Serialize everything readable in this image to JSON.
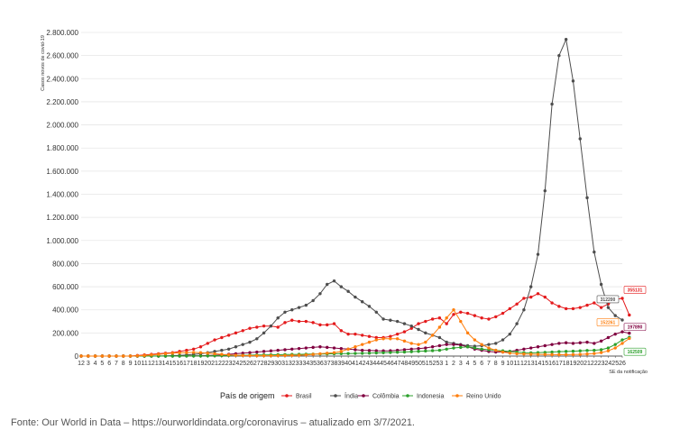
{
  "chart_data": {
    "type": "line",
    "ylabel": "Casos novos de covid-19",
    "xlabel": "SE da notificação",
    "y_ticks": [
      "0",
      "200.000",
      "400.000",
      "600.000",
      "800.000",
      "1.000.000",
      "1.200.000",
      "1.400.000",
      "1.600.000",
      "1.800.000",
      "2.000.000",
      "2.200.000",
      "2.400.000",
      "2.600.000",
      "2.800.000"
    ],
    "ylim": [
      0,
      2800000
    ],
    "x_labels": [
      "12",
      "3",
      "4",
      "5",
      "6",
      "7",
      "8",
      "9",
      "10",
      "11",
      "12",
      "13",
      "14",
      "15",
      "16",
      "17",
      "18",
      "19",
      "20",
      "21",
      "22",
      "23",
      "24",
      "25",
      "26",
      "27",
      "28",
      "29",
      "30",
      "31",
      "32",
      "33",
      "34",
      "35",
      "36",
      "37",
      "38",
      "39",
      "40",
      "41",
      "42",
      "43",
      "44",
      "45",
      "46",
      "47",
      "48",
      "49",
      "50",
      "51",
      "52",
      "53",
      "1",
      "2",
      "3",
      "4",
      "5",
      "6",
      "7",
      "8",
      "9",
      "10",
      "11",
      "12",
      "13",
      "14",
      "15",
      "16",
      "17",
      "18",
      "19",
      "20",
      "21",
      "22",
      "23",
      "24",
      "25",
      "26"
    ],
    "legend_title": "País de origem",
    "grid": true,
    "legend_position": "bottom",
    "series": [
      {
        "name": "Brasil",
        "color": "#e41a1c",
        "end_label": "355131",
        "values": [
          0,
          0,
          0,
          0,
          0,
          0,
          0,
          0,
          5000,
          10000,
          15000,
          20000,
          25000,
          30000,
          40000,
          50000,
          60000,
          80000,
          110000,
          140000,
          160000,
          180000,
          200000,
          220000,
          240000,
          250000,
          260000,
          260000,
          250000,
          290000,
          310000,
          300000,
          300000,
          290000,
          270000,
          270000,
          280000,
          220000,
          190000,
          190000,
          180000,
          170000,
          160000,
          160000,
          170000,
          190000,
          210000,
          240000,
          280000,
          300000,
          320000,
          330000,
          280000,
          360000,
          380000,
          370000,
          350000,
          330000,
          320000,
          340000,
          370000,
          410000,
          450000,
          500000,
          510000,
          540000,
          510000,
          460000,
          430000,
          410000,
          410000,
          420000,
          440000,
          460000,
          420000,
          450000,
          490000,
          500000,
          355131
        ]
      },
      {
        "name": "Índia",
        "color": "#4d4d4d",
        "end_label": "312200",
        "values": [
          0,
          0,
          0,
          0,
          0,
          0,
          0,
          0,
          0,
          0,
          500,
          1000,
          2000,
          4000,
          6000,
          10000,
          15000,
          20000,
          30000,
          40000,
          50000,
          60000,
          80000,
          100000,
          120000,
          150000,
          200000,
          260000,
          330000,
          380000,
          400000,
          420000,
          440000,
          480000,
          540000,
          620000,
          650000,
          600000,
          560000,
          510000,
          470000,
          430000,
          380000,
          320000,
          310000,
          300000,
          280000,
          260000,
          230000,
          200000,
          180000,
          160000,
          120000,
          110000,
          100000,
          90000,
          85000,
          90000,
          100000,
          110000,
          140000,
          190000,
          280000,
          400000,
          600000,
          880000,
          1430000,
          2180000,
          2600000,
          2740000,
          2380000,
          1880000,
          1370000,
          900000,
          620000,
          420000,
          350000,
          312200
        ]
      },
      {
        "name": "Colômbia",
        "color": "#800040",
        "end_label": "197890",
        "values": [
          0,
          0,
          0,
          0,
          0,
          0,
          0,
          0,
          0,
          0,
          0,
          0,
          0,
          500,
          1000,
          1500,
          2000,
          3000,
          5000,
          7000,
          10000,
          15000,
          20000,
          25000,
          30000,
          35000,
          40000,
          45000,
          50000,
          55000,
          60000,
          65000,
          70000,
          75000,
          80000,
          75000,
          70000,
          65000,
          60000,
          55000,
          50000,
          48000,
          46000,
          45000,
          46000,
          50000,
          55000,
          60000,
          65000,
          70000,
          80000,
          90000,
          100000,
          100000,
          95000,
          80000,
          60000,
          50000,
          40000,
          35000,
          35000,
          40000,
          50000,
          60000,
          70000,
          80000,
          90000,
          100000,
          110000,
          115000,
          110000,
          115000,
          120000,
          110000,
          130000,
          160000,
          190000,
          210000,
          197890
        ]
      },
      {
        "name": "Indonesia",
        "color": "#2ca02c",
        "end_label": "162509",
        "values": [
          0,
          0,
          0,
          0,
          0,
          0,
          0,
          0,
          0,
          0,
          0,
          0,
          0,
          0,
          200,
          500,
          800,
          1000,
          2000,
          3000,
          4000,
          5000,
          6000,
          7000,
          8000,
          9000,
          10000,
          11000,
          12000,
          13000,
          14000,
          15000,
          16000,
          17000,
          18000,
          19000,
          20000,
          21000,
          22000,
          23000,
          24000,
          25000,
          27000,
          29000,
          31000,
          33000,
          35000,
          38000,
          41000,
          44000,
          47000,
          50000,
          60000,
          70000,
          75000,
          80000,
          70000,
          60000,
          55000,
          50000,
          45000,
          40000,
          35000,
          30000,
          28000,
          30000,
          32000,
          35000,
          38000,
          40000,
          42000,
          45000,
          48000,
          50000,
          55000,
          70000,
          100000,
          140000,
          162509
        ]
      },
      {
        "name": "Reino Unido",
        "color": "#ff7f0e",
        "end_label": "152261",
        "values": [
          0,
          0,
          0,
          0,
          0,
          0,
          0,
          0,
          2000,
          5000,
          10000,
          15000,
          20000,
          25000,
          28000,
          30000,
          32000,
          30000,
          25000,
          20000,
          15000,
          10000,
          7000,
          5000,
          4000,
          3000,
          3000,
          3000,
          4000,
          5000,
          6000,
          7000,
          10000,
          15000,
          20000,
          25000,
          30000,
          40000,
          60000,
          80000,
          100000,
          120000,
          140000,
          150000,
          150000,
          150000,
          130000,
          110000,
          100000,
          120000,
          180000,
          250000,
          330000,
          400000,
          300000,
          200000,
          140000,
          100000,
          70000,
          50000,
          35000,
          25000,
          20000,
          18000,
          16000,
          15000,
          14000,
          13000,
          12000,
          12000,
          13000,
          15000,
          18000,
          22000,
          30000,
          45000,
          70000,
          110000,
          152261
        ]
      }
    ]
  },
  "source_text": "Fonte: Our World in Data – https://ourworldindata.org/coronavirus – atualizado em 3/7/2021."
}
